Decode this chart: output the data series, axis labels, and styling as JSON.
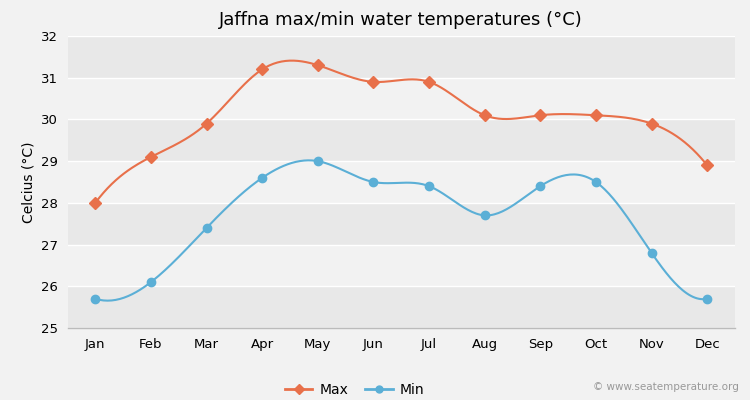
{
  "title": "Jaffna max/min water temperatures (°C)",
  "ylabel": "Celcius (°C)",
  "months": [
    "Jan",
    "Feb",
    "Mar",
    "Apr",
    "May",
    "Jun",
    "Jul",
    "Aug",
    "Sep",
    "Oct",
    "Nov",
    "Dec"
  ],
  "max_temps": [
    28.0,
    29.1,
    29.9,
    31.2,
    31.3,
    30.9,
    30.9,
    30.1,
    30.1,
    30.1,
    29.9,
    28.9
  ],
  "min_temps": [
    25.7,
    26.1,
    27.4,
    28.6,
    29.0,
    28.5,
    28.4,
    27.7,
    28.4,
    28.5,
    26.8,
    25.7
  ],
  "max_color": "#e8704a",
  "min_color": "#5bafd6",
  "ylim": [
    25,
    32
  ],
  "yticks": [
    25,
    26,
    27,
    28,
    29,
    30,
    31,
    32
  ],
  "bg_color": "#f2f2f2",
  "band_colors": [
    "#e8e8e8",
    "#f2f2f2"
  ],
  "grid_color": "#ffffff",
  "watermark": "© www.seatemperature.org",
  "legend_labels": [
    "Max",
    "Min"
  ]
}
